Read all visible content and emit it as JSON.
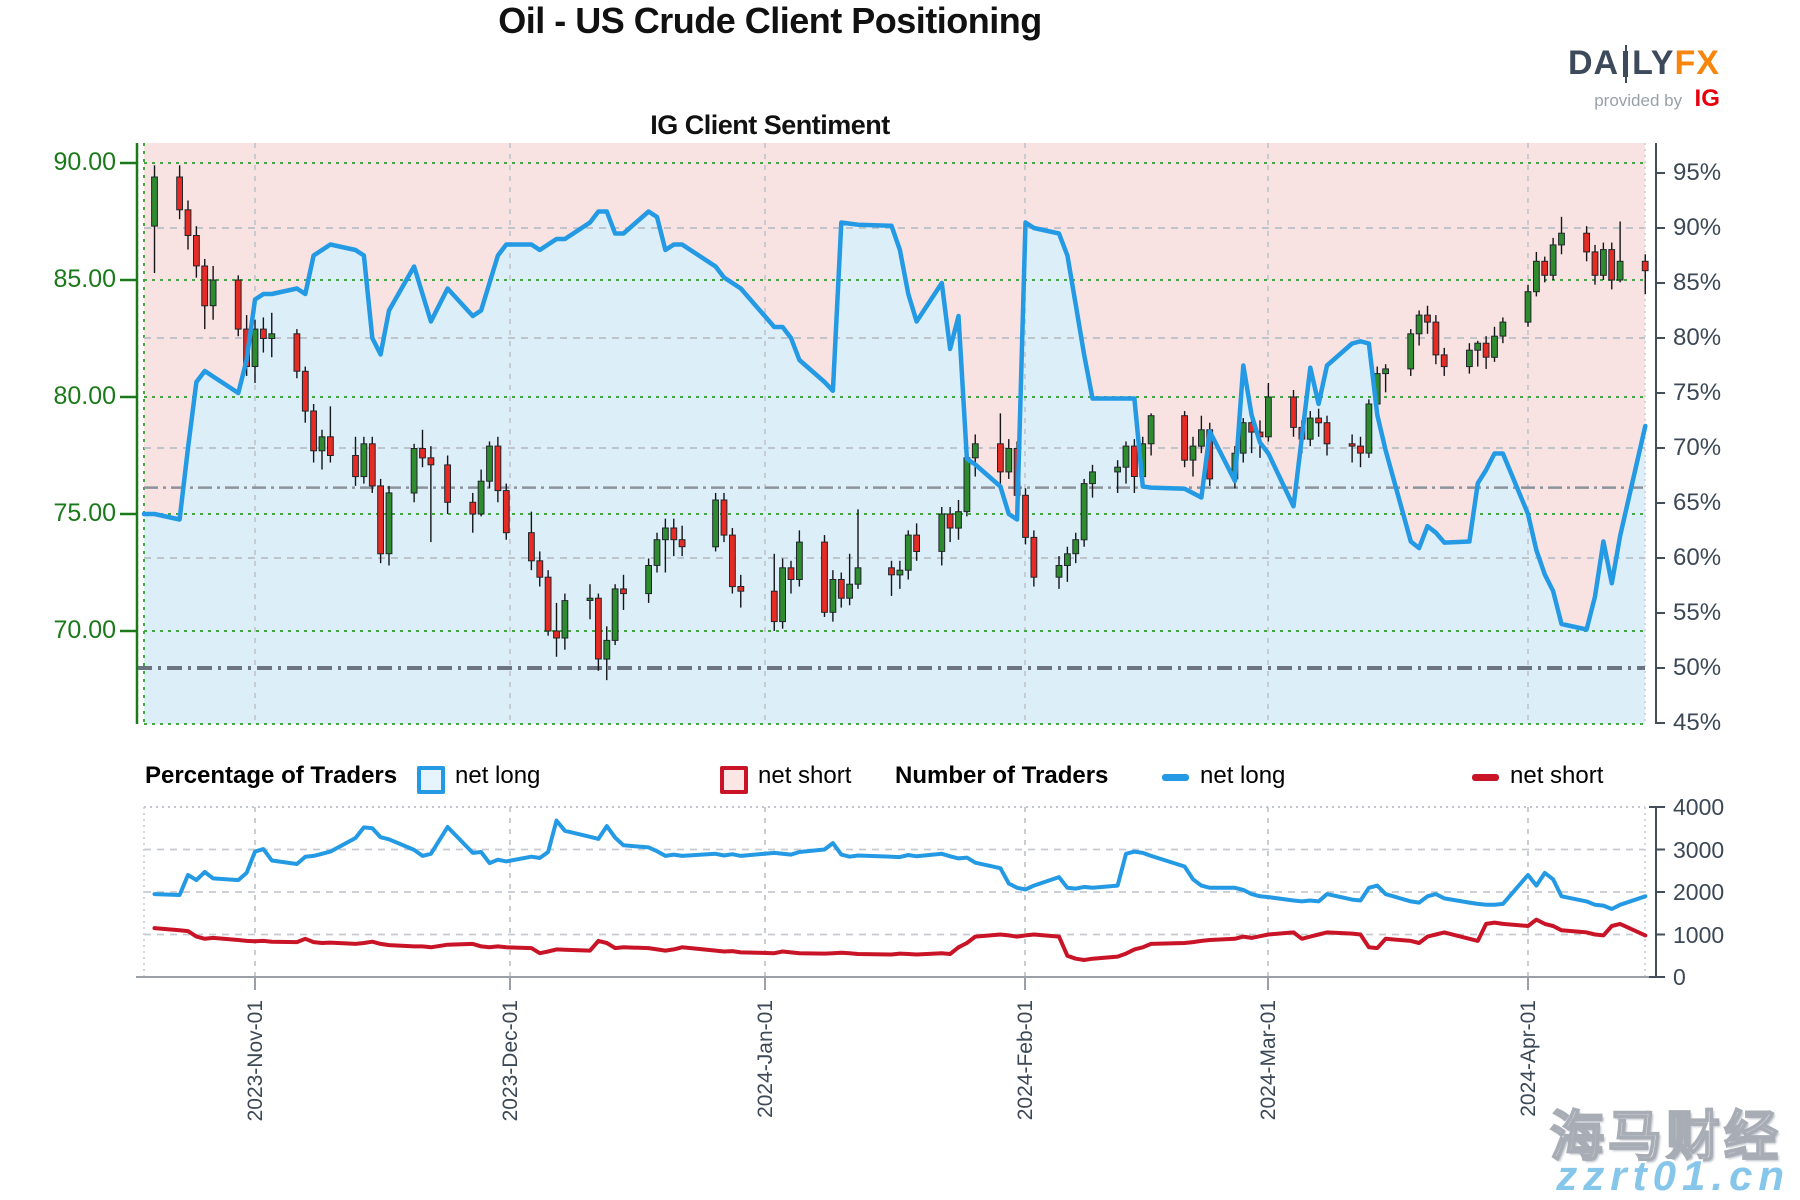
{
  "header": {
    "title": "Oil - US Crude Client Positioning",
    "subtitle": "IG Client Sentiment",
    "logo": {
      "part1": "DA",
      "part2": "LY",
      "part3": "FX",
      "provided_by": "provided by",
      "ig": "IG"
    }
  },
  "legend": {
    "pct_title": "Percentage of Traders",
    "pct_net_long": "net long",
    "pct_net_short": "net short",
    "num_title": "Number of Traders",
    "num_net_long": "net long",
    "num_net_short": "net short"
  },
  "watermark": {
    "line1": "海马财经",
    "line2": "zzrt01.cn"
  },
  "colors": {
    "net_long_blue": "#249ae5",
    "net_short_red": "#c81426",
    "candle_up": "#2f8b30",
    "candle_down": "#e52b24",
    "bg_above_line_pink": "#f8e3e2",
    "bg_below_line_blue": "#dceef8",
    "price_axis_green": "#1a7a1a",
    "axis_slate": "#3c4856"
  },
  "axes": {
    "price_ticks": [
      "90.00",
      "85.00",
      "80.00",
      "75.00",
      "70.00"
    ],
    "percent_ticks": [
      "95%",
      "90%",
      "85%",
      "80%",
      "75%",
      "70%",
      "65%",
      "60%",
      "55%",
      "50%",
      "45%"
    ],
    "count_ticks": [
      "4000",
      "3000",
      "2000",
      "1000",
      "0"
    ],
    "date_ticks": [
      "2023-Nov-01",
      "2023-Dec-01",
      "2024-Jan-01",
      "2024-Feb-01",
      "2024-Mar-01",
      "2024-Apr-01"
    ]
  },
  "chart_data": {
    "type": "candlestick+line",
    "title": "Oil - US Crude Client Positioning",
    "subtitle": "IG Client Sentiment",
    "price_axis_range": [
      66,
      90
    ],
    "percent_axis_range": [
      45,
      95
    ],
    "count_axis_range": [
      0,
      4000
    ],
    "reference_lines_pct": [
      66.4,
      50
    ],
    "dates": [
      "2023-10-20",
      "2023-10-23",
      "2023-10-24",
      "2023-10-25",
      "2023-10-26",
      "2023-10-27",
      "2023-10-30",
      "2023-10-31",
      "2023-11-01",
      "2023-11-02",
      "2023-11-03",
      "2023-11-06",
      "2023-11-07",
      "2023-11-08",
      "2023-11-09",
      "2023-11-10",
      "2023-11-13",
      "2023-11-14",
      "2023-11-15",
      "2023-11-16",
      "2023-11-17",
      "2023-11-20",
      "2023-11-21",
      "2023-11-22",
      "2023-11-24",
      "2023-11-27",
      "2023-11-28",
      "2023-11-29",
      "2023-11-30",
      "2023-12-01",
      "2023-12-04",
      "2023-12-05",
      "2023-12-06",
      "2023-12-07",
      "2023-12-08",
      "2023-12-11",
      "2023-12-12",
      "2023-12-13",
      "2023-12-14",
      "2023-12-15",
      "2023-12-18",
      "2023-12-19",
      "2023-12-20",
      "2023-12-21",
      "2023-12-22",
      "2023-12-26",
      "2023-12-27",
      "2023-12-28",
      "2023-12-29",
      "2024-01-02",
      "2024-01-03",
      "2024-01-04",
      "2024-01-05",
      "2024-01-08",
      "2024-01-09",
      "2024-01-10",
      "2024-01-11",
      "2024-01-12",
      "2024-01-16",
      "2024-01-17",
      "2024-01-18",
      "2024-01-19",
      "2024-01-22",
      "2024-01-23",
      "2024-01-24",
      "2024-01-25",
      "2024-01-26",
      "2024-01-29",
      "2024-01-30",
      "2024-01-31",
      "2024-02-01",
      "2024-02-02",
      "2024-02-05",
      "2024-02-06",
      "2024-02-07",
      "2024-02-08",
      "2024-02-09",
      "2024-02-12",
      "2024-02-13",
      "2024-02-14",
      "2024-02-15",
      "2024-02-16",
      "2024-02-20",
      "2024-02-21",
      "2024-02-22",
      "2024-02-23",
      "2024-02-26",
      "2024-02-27",
      "2024-02-28",
      "2024-02-29",
      "2024-03-01",
      "2024-03-04",
      "2024-03-05",
      "2024-03-06",
      "2024-03-07",
      "2024-03-08",
      "2024-03-11",
      "2024-03-12",
      "2024-03-13",
      "2024-03-14",
      "2024-03-15",
      "2024-03-18",
      "2024-03-19",
      "2024-03-20",
      "2024-03-21",
      "2024-03-22",
      "2024-03-25",
      "2024-03-26",
      "2024-03-27",
      "2024-03-28",
      "2024-03-29",
      "2024-04-01",
      "2024-04-02",
      "2024-04-03",
      "2024-04-04",
      "2024-04-05",
      "2024-04-08",
      "2024-04-09",
      "2024-04-10",
      "2024-04-11",
      "2024-04-12",
      "2024-04-15"
    ],
    "candles_ohlc": [
      [
        87.3,
        89.9,
        85.3,
        89.4
      ],
      [
        89.4,
        89.9,
        87.6,
        88.0
      ],
      [
        88.0,
        88.4,
        86.3,
        86.9
      ],
      [
        86.9,
        87.3,
        85.1,
        85.6
      ],
      [
        85.6,
        85.9,
        82.9,
        83.9
      ],
      [
        83.9,
        85.6,
        83.3,
        85.0
      ],
      [
        85.0,
        85.2,
        82.6,
        82.9
      ],
      [
        82.9,
        83.5,
        80.9,
        81.3
      ],
      [
        81.3,
        83.3,
        80.6,
        82.9
      ],
      [
        82.9,
        83.4,
        81.9,
        82.5
      ],
      [
        82.5,
        83.6,
        81.7,
        82.7
      ],
      [
        82.7,
        82.9,
        80.8,
        81.1
      ],
      [
        81.1,
        81.3,
        78.9,
        79.4
      ],
      [
        79.4,
        79.7,
        77.2,
        77.7
      ],
      [
        77.7,
        78.6,
        76.9,
        78.3
      ],
      [
        78.3,
        79.6,
        77.2,
        77.5
      ],
      [
        77.5,
        78.3,
        76.2,
        76.6
      ],
      [
        76.6,
        78.3,
        76.3,
        78.0
      ],
      [
        78.0,
        78.3,
        75.9,
        76.2
      ],
      [
        76.2,
        76.5,
        72.9,
        73.3
      ],
      [
        73.3,
        76.2,
        72.8,
        75.9
      ],
      [
        75.9,
        78.0,
        75.5,
        77.8
      ],
      [
        77.8,
        78.6,
        77.0,
        77.4
      ],
      [
        77.4,
        77.9,
        73.8,
        77.1
      ],
      [
        77.1,
        77.5,
        75.0,
        75.5
      ],
      [
        75.5,
        75.9,
        74.2,
        75.0
      ],
      [
        75.0,
        76.9,
        74.9,
        76.4
      ],
      [
        76.4,
        78.1,
        76.1,
        77.9
      ],
      [
        77.9,
        78.3,
        75.5,
        76.0
      ],
      [
        76.0,
        76.3,
        73.9,
        74.2
      ],
      [
        74.2,
        75.1,
        72.6,
        73.0
      ],
      [
        73.0,
        73.4,
        71.9,
        72.3
      ],
      [
        72.3,
        72.6,
        69.8,
        70.0
      ],
      [
        70.0,
        71.2,
        68.9,
        69.7
      ],
      [
        69.7,
        71.6,
        69.2,
        71.3
      ],
      [
        71.3,
        72.0,
        70.5,
        71.4
      ],
      [
        71.4,
        71.6,
        68.3,
        68.8
      ],
      [
        68.8,
        70.2,
        67.9,
        69.6
      ],
      [
        69.6,
        72.0,
        69.4,
        71.8
      ],
      [
        71.8,
        72.4,
        70.9,
        71.6
      ],
      [
        71.6,
        73.1,
        71.2,
        72.8
      ],
      [
        72.8,
        74.2,
        72.5,
        73.9
      ],
      [
        73.9,
        74.8,
        72.5,
        74.4
      ],
      [
        74.4,
        74.8,
        73.2,
        73.9
      ],
      [
        73.9,
        74.5,
        73.2,
        73.6
      ],
      [
        73.6,
        75.9,
        73.4,
        75.6
      ],
      [
        75.6,
        75.9,
        73.8,
        74.1
      ],
      [
        74.1,
        74.4,
        71.6,
        71.9
      ],
      [
        71.9,
        72.4,
        71.0,
        71.7
      ],
      [
        71.7,
        73.3,
        70.0,
        70.4
      ],
      [
        70.4,
        73.1,
        70.1,
        72.7
      ],
      [
        72.7,
        73.0,
        71.6,
        72.2
      ],
      [
        72.2,
        74.3,
        71.9,
        73.8
      ],
      [
        73.8,
        74.1,
        70.6,
        70.8
      ],
      [
        70.8,
        72.6,
        70.4,
        72.2
      ],
      [
        72.2,
        72.5,
        71.0,
        71.4
      ],
      [
        71.4,
        73.3,
        71.1,
        72.0
      ],
      [
        72.0,
        75.2,
        71.8,
        72.7
      ],
      [
        72.7,
        73.0,
        71.5,
        72.4
      ],
      [
        72.4,
        73.0,
        71.8,
        72.6
      ],
      [
        72.6,
        74.3,
        72.2,
        74.1
      ],
      [
        74.1,
        74.6,
        73.0,
        73.4
      ],
      [
        73.4,
        75.3,
        72.8,
        75.0
      ],
      [
        75.0,
        75.3,
        73.8,
        74.4
      ],
      [
        74.4,
        75.6,
        73.9,
        75.1
      ],
      [
        75.1,
        77.6,
        74.9,
        77.4
      ],
      [
        77.4,
        78.4,
        76.6,
        78.0
      ],
      [
        78.0,
        79.3,
        76.3,
        76.8
      ],
      [
        76.8,
        78.2,
        76.5,
        77.8
      ],
      [
        77.8,
        78.1,
        75.4,
        75.8
      ],
      [
        75.8,
        76.1,
        73.7,
        74.0
      ],
      [
        74.0,
        74.3,
        71.9,
        72.3
      ],
      [
        72.3,
        73.2,
        71.8,
        72.8
      ],
      [
        72.8,
        73.6,
        72.1,
        73.3
      ],
      [
        73.3,
        74.2,
        72.9,
        73.9
      ],
      [
        73.9,
        76.5,
        73.6,
        76.3
      ],
      [
        76.3,
        77.1,
        75.7,
        76.8
      ],
      [
        76.8,
        77.3,
        75.9,
        77.0
      ],
      [
        77.0,
        78.1,
        76.3,
        77.9
      ],
      [
        77.9,
        78.2,
        75.9,
        76.6
      ],
      [
        76.6,
        78.3,
        76.3,
        78.0
      ],
      [
        78.0,
        79.3,
        77.5,
        79.2
      ],
      [
        79.2,
        79.4,
        77.0,
        77.3
      ],
      [
        77.3,
        78.3,
        76.6,
        77.9
      ],
      [
        77.9,
        79.2,
        77.6,
        78.6
      ],
      [
        78.6,
        78.9,
        76.2,
        76.5
      ],
      [
        76.5,
        77.9,
        76.1,
        77.6
      ],
      [
        77.6,
        79.1,
        77.2,
        78.9
      ],
      [
        78.9,
        79.2,
        77.6,
        78.5
      ],
      [
        78.5,
        79.0,
        77.4,
        78.3
      ],
      [
        78.3,
        80.6,
        78.1,
        80.0
      ],
      [
        80.0,
        80.3,
        78.3,
        78.7
      ],
      [
        78.7,
        79.0,
        77.6,
        78.2
      ],
      [
        78.2,
        79.4,
        77.9,
        79.1
      ],
      [
        79.1,
        79.5,
        78.3,
        78.9
      ],
      [
        78.9,
        79.2,
        77.5,
        78.0
      ],
      [
        78.0,
        78.4,
        77.2,
        77.9
      ],
      [
        77.9,
        78.3,
        77.0,
        77.6
      ],
      [
        77.6,
        79.9,
        77.4,
        79.7
      ],
      [
        79.7,
        81.3,
        79.4,
        81.0
      ],
      [
        81.0,
        81.4,
        80.2,
        81.2
      ],
      [
        81.2,
        82.9,
        80.9,
        82.7
      ],
      [
        82.7,
        83.7,
        82.2,
        83.5
      ],
      [
        83.5,
        83.9,
        82.7,
        83.2
      ],
      [
        83.2,
        83.5,
        81.4,
        81.8
      ],
      [
        81.8,
        82.1,
        80.9,
        81.3
      ],
      [
        81.3,
        82.3,
        81.0,
        82.0
      ],
      [
        82.0,
        82.4,
        81.3,
        82.3
      ],
      [
        82.3,
        82.6,
        81.2,
        81.7
      ],
      [
        81.7,
        83.0,
        81.5,
        82.6
      ],
      [
        82.6,
        83.4,
        82.3,
        83.2
      ],
      [
        83.2,
        84.8,
        83.0,
        84.5
      ],
      [
        84.5,
        86.2,
        84.3,
        85.8
      ],
      [
        85.8,
        86.0,
        84.9,
        85.2
      ],
      [
        85.2,
        86.8,
        85.0,
        86.5
      ],
      [
        86.5,
        87.7,
        86.1,
        87.0
      ],
      [
        87.0,
        87.3,
        85.8,
        86.2
      ],
      [
        86.2,
        86.5,
        84.8,
        85.2
      ],
      [
        85.2,
        86.6,
        85.0,
        86.3
      ],
      [
        86.3,
        86.6,
        84.6,
        85.0
      ],
      [
        85.0,
        87.5,
        84.9,
        85.8
      ],
      [
        85.8,
        86.1,
        84.4,
        85.4
      ]
    ],
    "net_long_percent": [
      64,
      63.5,
      70,
      76,
      77,
      76.5,
      75,
      78,
      83.5,
      84,
      84,
      84.5,
      84,
      87.5,
      88,
      88.5,
      88,
      87.5,
      80,
      78.5,
      82.5,
      86.5,
      84,
      81.5,
      84.5,
      82,
      82.5,
      85,
      87.5,
      88.5,
      88.5,
      88,
      88.5,
      89,
      89,
      90.5,
      91.5,
      91.5,
      89.5,
      89.5,
      91.5,
      91,
      88,
      88.5,
      88.5,
      86.5,
      85.5,
      85,
      84.5,
      81,
      81,
      80,
      78,
      76,
      75.2,
      90.5,
      90.4,
      90.3,
      90.2,
      88,
      84,
      81.5,
      85,
      79,
      82,
      69,
      68.5,
      66.5,
      64,
      63.5,
      90.5,
      90,
      89.5,
      87.5,
      83,
      78.5,
      74.5,
      74.5,
      74.5,
      74.5,
      66.5,
      66.4,
      66.3,
      65.9,
      65.5,
      71.5,
      67,
      77.5,
      73,
      70.5,
      69.5,
      64.7,
      71,
      77.3,
      74,
      77.5,
      79.5,
      79.7,
      79.5,
      73,
      69.8,
      61.5,
      60.9,
      62.9,
      62.3,
      61.4,
      61.5,
      66.8,
      68,
      69.5,
      69.5,
      64,
      60.7,
      58.5,
      57,
      54,
      53.5,
      56.5,
      61.5,
      57.7,
      62,
      72
    ],
    "traders_net_long": [
      1950,
      1930,
      2400,
      2280,
      2470,
      2320,
      2280,
      2450,
      2950,
      3010,
      2740,
      2660,
      2830,
      2850,
      2900,
      2950,
      3270,
      3520,
      3500,
      3290,
      3240,
      2990,
      2850,
      2900,
      3530,
      2920,
      2940,
      2680,
      2760,
      2720,
      2830,
      2800,
      2940,
      3680,
      3440,
      3300,
      3250,
      3550,
      3280,
      3100,
      3050,
      2960,
      2850,
      2880,
      2850,
      2900,
      2860,
      2890,
      2850,
      2920,
      2900,
      2880,
      2940,
      3000,
      3150,
      2880,
      2830,
      2860,
      2830,
      2820,
      2870,
      2840,
      2900,
      2840,
      2790,
      2810,
      2690,
      2560,
      2200,
      2100,
      2060,
      2150,
      2350,
      2100,
      2080,
      2120,
      2100,
      2150,
      2900,
      2950,
      2920,
      2850,
      2600,
      2300,
      2150,
      2100,
      2100,
      2050,
      1950,
      1900,
      1880,
      1800,
      1780,
      1800,
      1780,
      1950,
      1820,
      1800,
      2100,
      2150,
      1950,
      1780,
      1750,
      1900,
      1950,
      1850,
      1750,
      1720,
      1700,
      1700,
      1720,
      2400,
      2150,
      2450,
      2300,
      1900,
      1780,
      1700,
      1680,
      1600,
      1700,
      1900
    ],
    "traders_net_short": [
      1150,
      1100,
      1080,
      950,
      900,
      920,
      870,
      850,
      840,
      850,
      830,
      820,
      900,
      820,
      800,
      810,
      780,
      800,
      830,
      780,
      750,
      720,
      720,
      700,
      760,
      780,
      720,
      700,
      720,
      700,
      680,
      560,
      600,
      650,
      640,
      620,
      850,
      800,
      680,
      700,
      680,
      650,
      620,
      650,
      700,
      620,
      600,
      610,
      580,
      560,
      600,
      580,
      560,
      550,
      560,
      570,
      560,
      540,
      530,
      550,
      540,
      530,
      560,
      540,
      700,
      800,
      950,
      1000,
      980,
      950,
      980,
      1000,
      950,
      500,
      430,
      400,
      430,
      480,
      550,
      650,
      700,
      780,
      800,
      820,
      850,
      870,
      900,
      950,
      920,
      960,
      1000,
      1050,
      900,
      950,
      1000,
      1050,
      1020,
      1000,
      700,
      680,
      900,
      850,
      800,
      950,
      1000,
      1050,
      900,
      850,
      1250,
      1280,
      1250,
      1200,
      1350,
      1250,
      1200,
      1100,
      1050,
      1000,
      980,
      1200,
      1250,
      980
    ]
  }
}
